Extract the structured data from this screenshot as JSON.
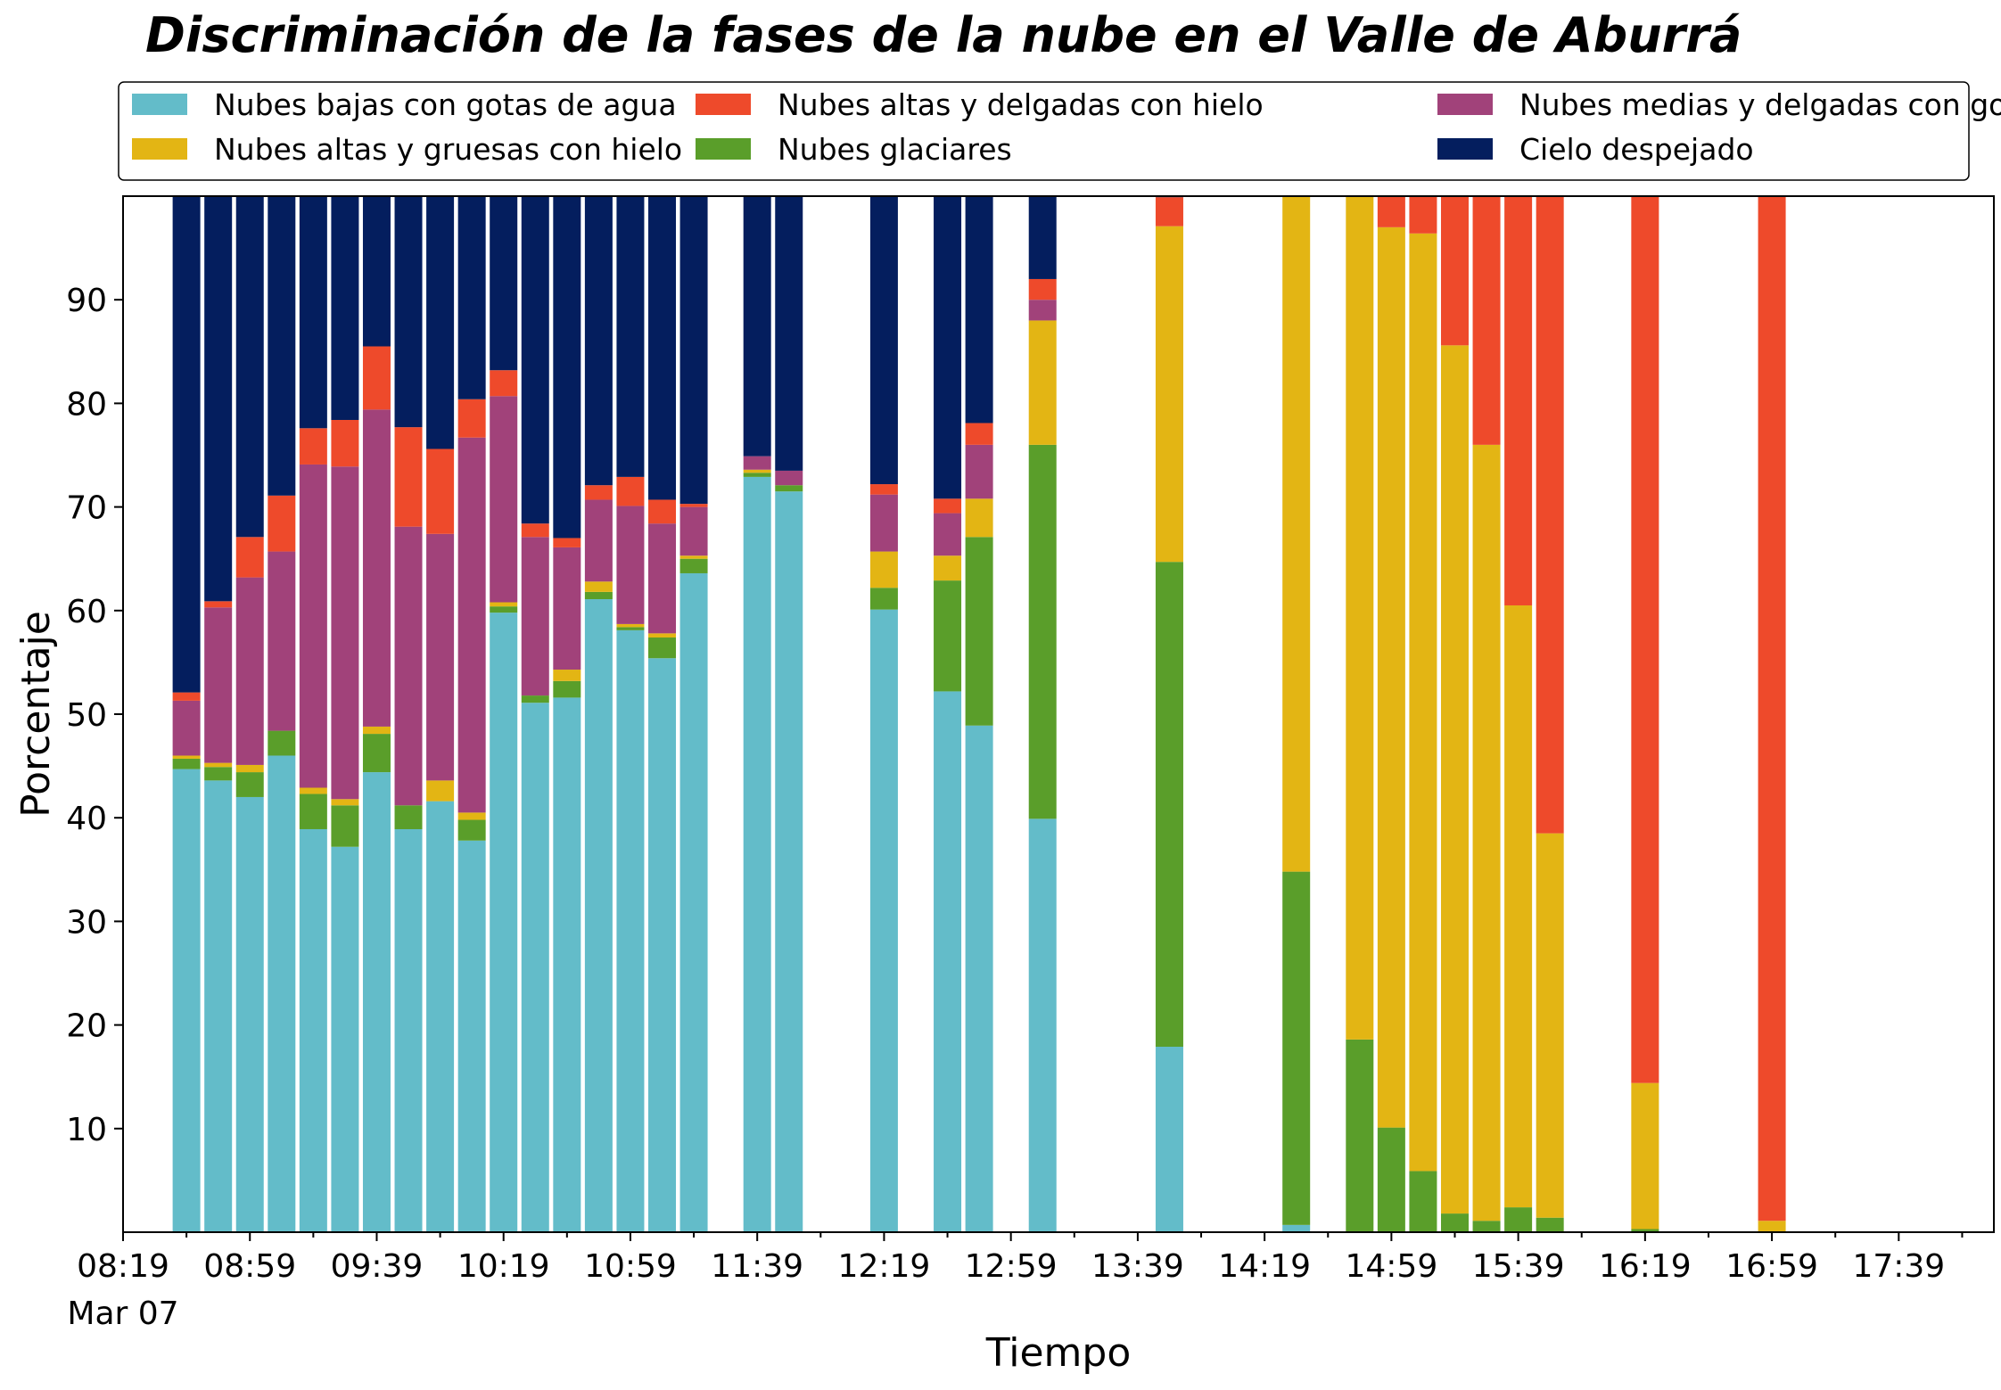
{
  "chart_data": {
    "type": "bar",
    "stacked": true,
    "title": "Discriminación de la fases de la nube en el Valle de Aburrá",
    "xlabel": "Tiempo",
    "ylabel": "Porcentaje",
    "ylim": [
      0,
      100
    ],
    "yticks": [
      10,
      20,
      30,
      40,
      50,
      60,
      70,
      80,
      90
    ],
    "xlim": [
      "08:19",
      "18:09"
    ],
    "xticks": [
      {
        "label": "08:19",
        "sub": "Mar 07"
      },
      {
        "label": "08:59"
      },
      {
        "label": "09:39"
      },
      {
        "label": "10:19"
      },
      {
        "label": "10:59"
      },
      {
        "label": "11:39"
      },
      {
        "label": "12:19"
      },
      {
        "label": "12:59"
      },
      {
        "label": "13:39"
      },
      {
        "label": "14:19"
      },
      {
        "label": "14:59"
      },
      {
        "label": "15:39"
      },
      {
        "label": "16:19"
      },
      {
        "label": "16:59"
      },
      {
        "label": "17:39"
      }
    ],
    "legend_position": "top",
    "grid": false,
    "series": [
      {
        "name": "Nubes bajas con gotas de agua",
        "color": "#63bcc9"
      },
      {
        "name": "Nubes glaciares",
        "color": "#5a9e2a"
      },
      {
        "name": "Nubes altas y gruesas con hielo",
        "color": "#e3b514"
      },
      {
        "name": "Nubes medias y delgadas con gotas de agua",
        "color": "#a1427a"
      },
      {
        "name": "Nubes altas y delgadas con hielo",
        "color": "#ee4a2b"
      },
      {
        "name": "Cielo despejado",
        "color": "#041e5e"
      }
    ],
    "legend_order": [
      0,
      2,
      4,
      1,
      3,
      5
    ],
    "bars": [
      {
        "x": "08:39",
        "values": [
          44.7,
          1.0,
          0.3,
          5.3,
          0.8,
          47.9
        ]
      },
      {
        "x": "08:49",
        "values": [
          43.6,
          1.3,
          0.4,
          15.0,
          0.6,
          39.1
        ]
      },
      {
        "x": "08:59",
        "values": [
          42.0,
          2.4,
          0.7,
          18.1,
          3.9,
          32.9
        ]
      },
      {
        "x": "09:09",
        "values": [
          46.0,
          2.4,
          0.0,
          17.3,
          5.4,
          28.9
        ]
      },
      {
        "x": "09:19",
        "values": [
          38.9,
          3.4,
          0.6,
          31.2,
          3.5,
          22.4
        ]
      },
      {
        "x": "09:29",
        "values": [
          37.2,
          4.0,
          0.6,
          32.1,
          4.5,
          21.6
        ]
      },
      {
        "x": "09:39",
        "values": [
          44.4,
          3.7,
          0.7,
          30.6,
          6.1,
          14.5
        ]
      },
      {
        "x": "09:49",
        "values": [
          38.9,
          2.3,
          0.0,
          26.9,
          9.6,
          22.3
        ]
      },
      {
        "x": "09:59",
        "values": [
          41.6,
          0.0,
          2.0,
          23.8,
          8.2,
          24.4
        ]
      },
      {
        "x": "10:09",
        "values": [
          37.8,
          2.0,
          0.7,
          36.2,
          3.7,
          19.6
        ]
      },
      {
        "x": "10:19",
        "values": [
          59.8,
          0.6,
          0.4,
          19.9,
          2.5,
          16.8
        ]
      },
      {
        "x": "10:29",
        "values": [
          51.1,
          0.7,
          0.0,
          15.3,
          1.3,
          31.6
        ]
      },
      {
        "x": "10:39",
        "values": [
          51.6,
          1.6,
          1.1,
          11.8,
          0.9,
          33.0
        ]
      },
      {
        "x": "10:49",
        "values": [
          61.1,
          0.7,
          1.0,
          7.9,
          1.4,
          27.9
        ]
      },
      {
        "x": "10:59",
        "values": [
          58.1,
          0.3,
          0.3,
          11.4,
          2.8,
          27.1
        ]
      },
      {
        "x": "11:09",
        "values": [
          55.4,
          2.0,
          0.4,
          10.6,
          2.3,
          29.3
        ]
      },
      {
        "x": "11:19",
        "values": [
          63.6,
          1.4,
          0.3,
          4.7,
          0.3,
          29.7
        ]
      },
      {
        "x": "11:39",
        "values": [
          72.9,
          0.4,
          0.3,
          1.3,
          0.0,
          25.1
        ]
      },
      {
        "x": "11:49",
        "values": [
          71.5,
          0.6,
          0.0,
          1.4,
          0.0,
          26.5
        ]
      },
      {
        "x": "12:19",
        "values": [
          60.1,
          2.1,
          3.5,
          5.5,
          1.0,
          27.8
        ]
      },
      {
        "x": "12:39",
        "values": [
          52.2,
          10.7,
          2.4,
          4.1,
          1.4,
          29.2
        ]
      },
      {
        "x": "12:49",
        "values": [
          48.9,
          18.2,
          3.7,
          5.2,
          2.1,
          21.9
        ]
      },
      {
        "x": "13:09",
        "values": [
          39.9,
          36.1,
          12.0,
          2.0,
          2.0,
          8.0
        ]
      },
      {
        "x": "13:49",
        "values": [
          17.9,
          46.8,
          32.4,
          0.0,
          2.8,
          0.1
        ]
      },
      {
        "x": "14:29",
        "values": [
          0.7,
          34.1,
          65.2,
          0.0,
          0.0,
          0.0
        ]
      },
      {
        "x": "14:49",
        "values": [
          0.0,
          18.6,
          81.4,
          0.0,
          0.0,
          0.0
        ]
      },
      {
        "x": "14:59",
        "values": [
          0.0,
          10.1,
          86.9,
          0.0,
          3.0,
          0.0
        ]
      },
      {
        "x": "15:09",
        "values": [
          0.0,
          5.9,
          90.5,
          0.0,
          3.6,
          0.0
        ]
      },
      {
        "x": "15:19",
        "values": [
          0.0,
          1.8,
          83.8,
          0.0,
          14.4,
          0.0
        ]
      },
      {
        "x": "15:29",
        "values": [
          0.0,
          1.1,
          74.9,
          0.0,
          24.0,
          0.0
        ]
      },
      {
        "x": "15:39",
        "values": [
          0.0,
          2.4,
          58.1,
          0.0,
          39.5,
          0.0
        ]
      },
      {
        "x": "15:49",
        "values": [
          0.0,
          1.4,
          37.1,
          0.0,
          61.5,
          0.0
        ]
      },
      {
        "x": "16:19",
        "values": [
          0.0,
          0.3,
          14.1,
          0.0,
          85.6,
          0.0
        ]
      },
      {
        "x": "16:59",
        "values": [
          0.0,
          0.0,
          1.1,
          0.0,
          98.9,
          0.0
        ]
      }
    ]
  }
}
